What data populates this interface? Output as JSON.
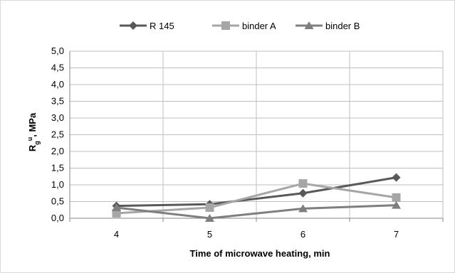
{
  "chart_data": {
    "type": "line",
    "categories": [
      "4",
      "5",
      "6",
      "7"
    ],
    "series": [
      {
        "name": "R 145",
        "values": [
          0.37,
          0.42,
          0.75,
          1.22
        ],
        "color": "#595959",
        "marker": "diamond"
      },
      {
        "name": "binder A",
        "values": [
          0.15,
          0.32,
          1.04,
          0.62
        ],
        "color": "#a6a6a6",
        "marker": "square"
      },
      {
        "name": "binder B",
        "values": [
          0.32,
          0.0,
          0.29,
          0.39
        ],
        "color": "#7f7f7f",
        "marker": "triangle"
      }
    ],
    "xlabel": "Time of microwave heating, min",
    "ylabel": "R",
    "ylabel_sub": "g",
    "ylabel_sup": "u",
    "ylabel_suffix": ", MPa",
    "ylim": [
      0,
      5
    ],
    "yticks": [
      "0,0",
      "0,5",
      "1,0",
      "1,5",
      "2,0",
      "2,5",
      "3,0",
      "3,5",
      "4,0",
      "4,5",
      "5,0"
    ],
    "grid": true,
    "legend_position": "top"
  }
}
